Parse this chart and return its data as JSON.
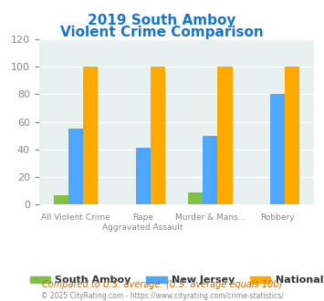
{
  "title_line1": "2019 South Amboy",
  "title_line2": "Violent Crime Comparison",
  "title_color": "#1874cd",
  "categories": [
    "All Violent Crime",
    "Rape\nAggravated Assault",
    "Murder & Mans...\n",
    "Robbery"
  ],
  "cat_line1": [
    "All Violent Crime",
    "Rape",
    "Murder & Mans...",
    "Robbery"
  ],
  "cat_line2": [
    "",
    "Aggravated Assault",
    "",
    ""
  ],
  "south_amboy": [
    7,
    0,
    9,
    0
  ],
  "new_jersey": [
    55,
    41,
    50,
    80
  ],
  "national": [
    100,
    100,
    100,
    100
  ],
  "colors": {
    "south_amboy": "#7dc242",
    "new_jersey": "#4da6ff",
    "national": "#ffaa00"
  },
  "ylim": [
    0,
    120
  ],
  "yticks": [
    0,
    20,
    40,
    60,
    80,
    100,
    120
  ],
  "background_plot": "#e8f0f0",
  "background_fig": "#ffffff",
  "grid_color": "#ffffff",
  "legend_labels": [
    "South Amboy",
    "New Jersey",
    "National"
  ],
  "footnote1": "Compared to U.S. average. (U.S. average equals 100)",
  "footnote2": "© 2025 CityRating.com - https://www.cityrating.com/crime-statistics/",
  "footnote1_color": "#cc6600",
  "footnote2_color": "#888888",
  "axis_label_color": "#888888",
  "tick_color": "#888888"
}
